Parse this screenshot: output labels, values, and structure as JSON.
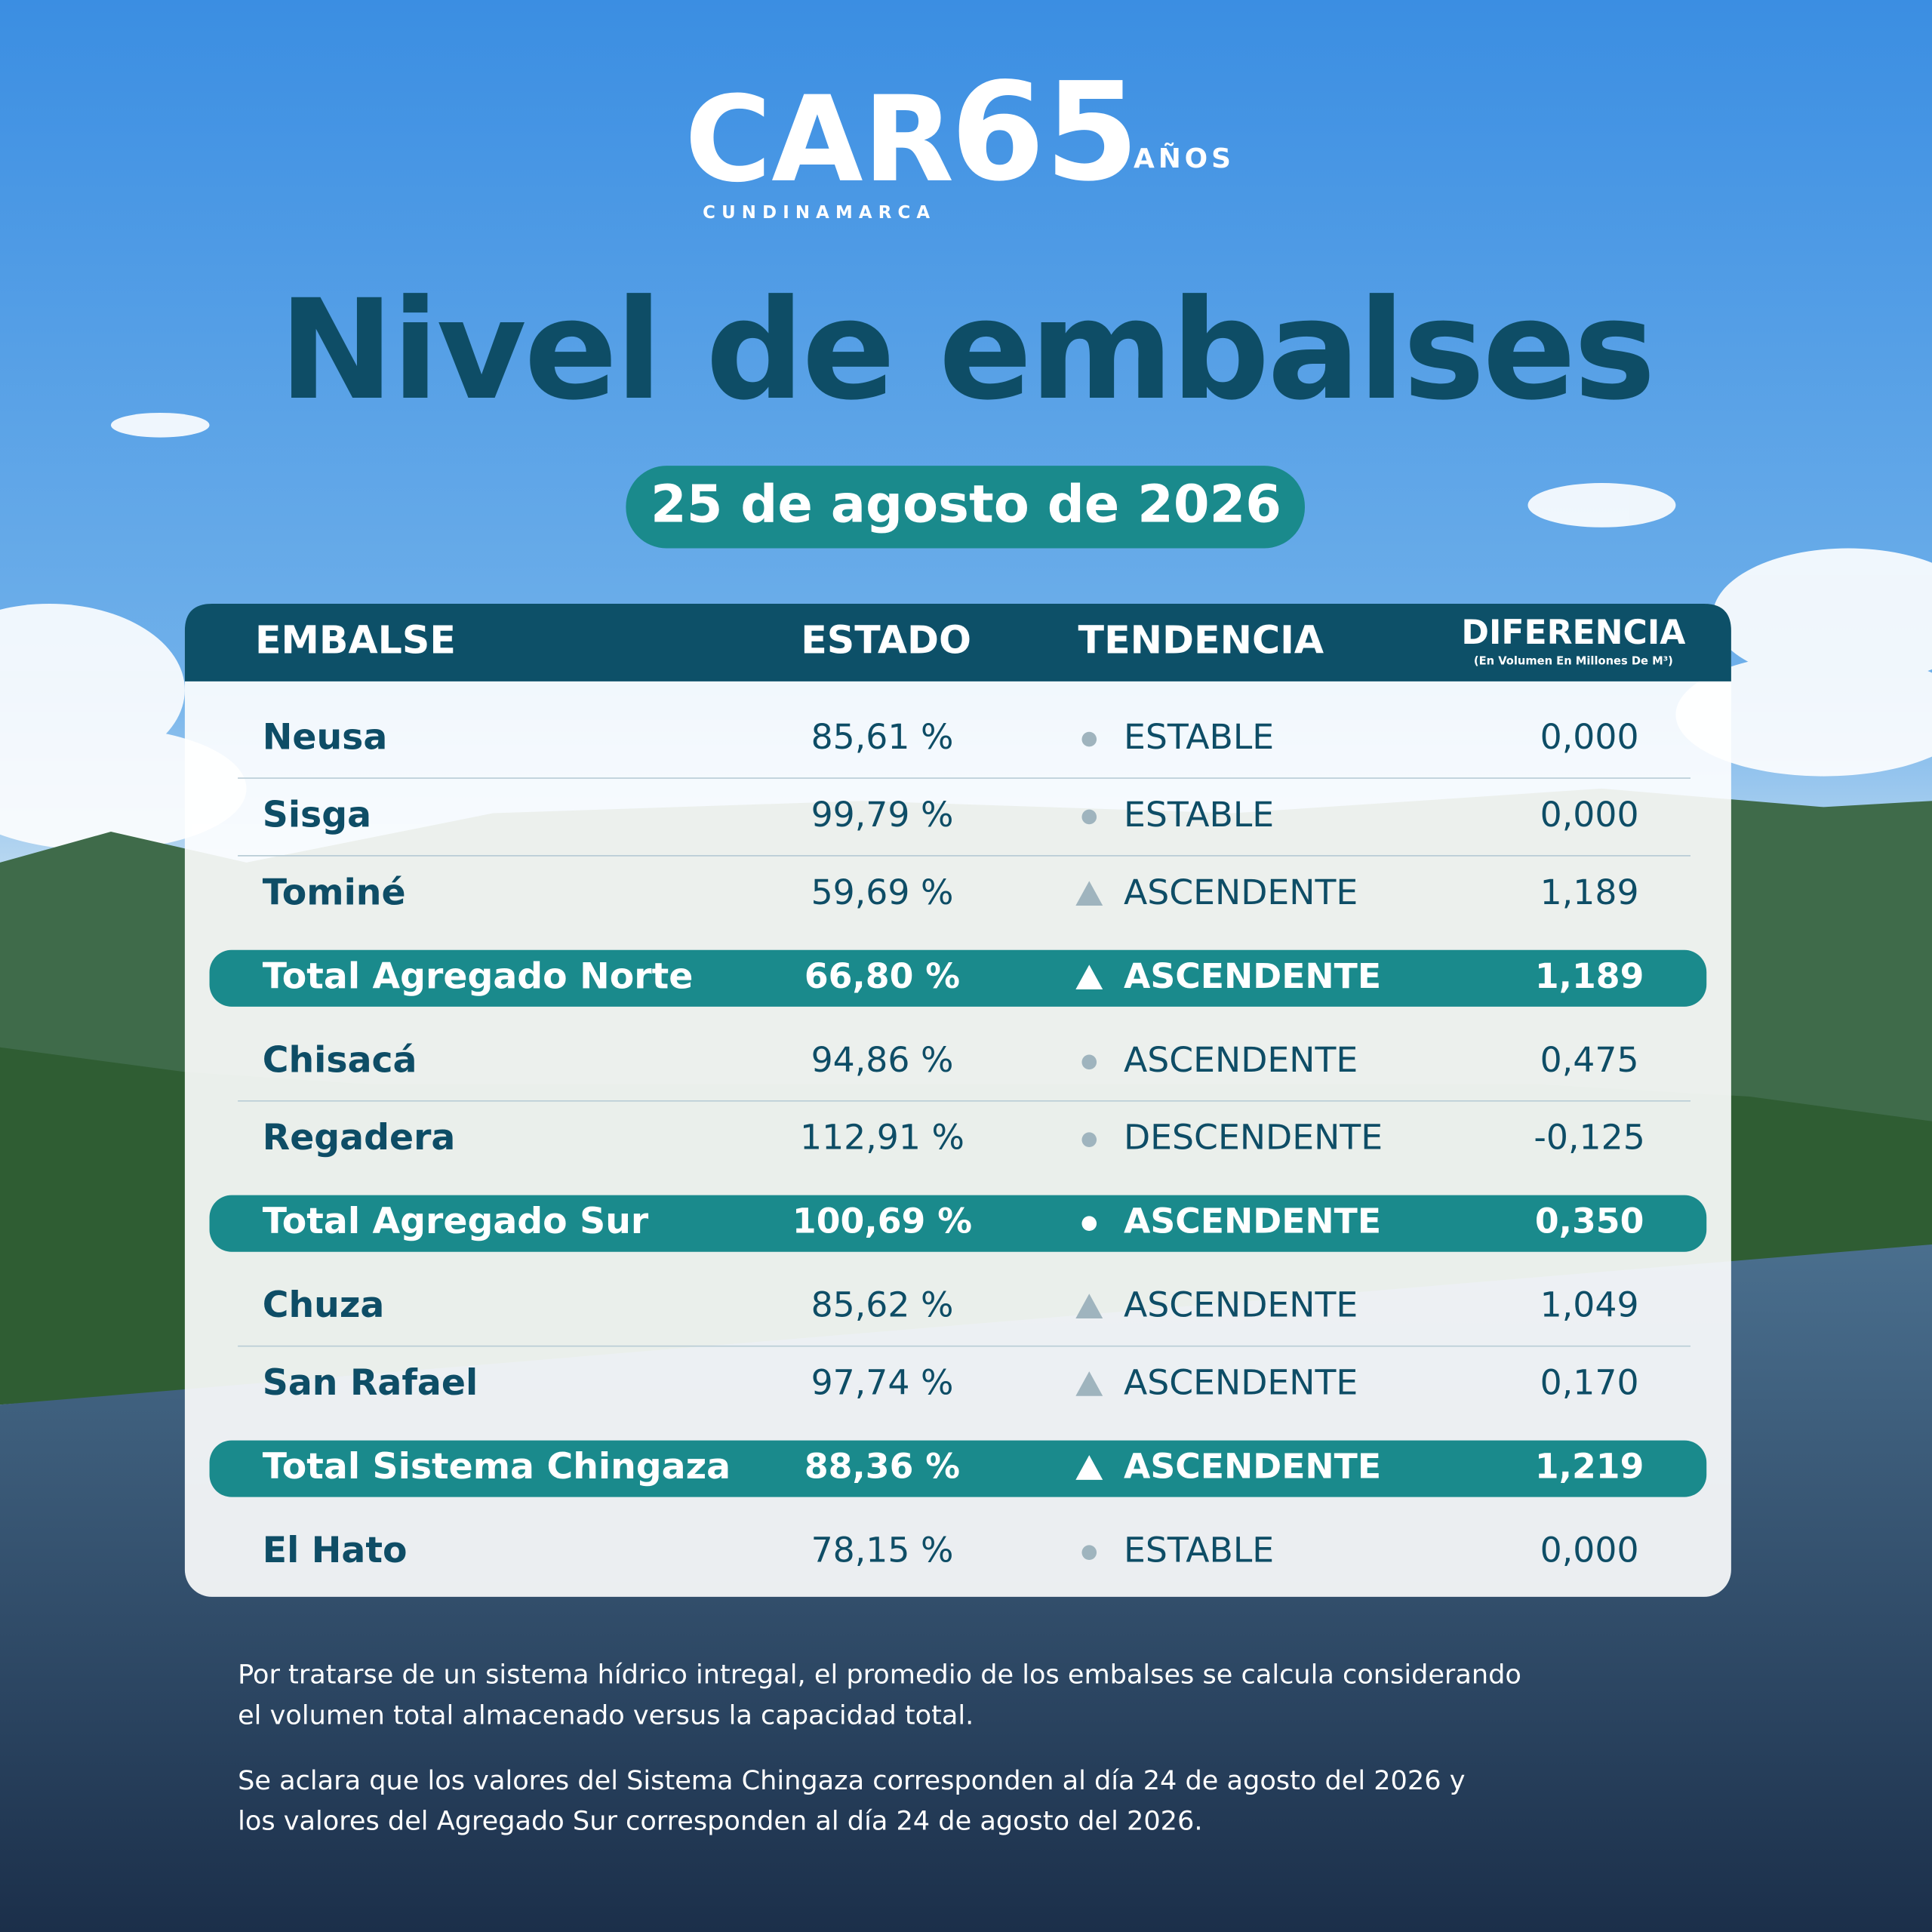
{
  "logo": {
    "brand": "CAR",
    "region": "CUNDINAMARCA",
    "anniversary": "65",
    "anniversary_label": "AÑOS"
  },
  "title": "Nivel de embalses",
  "date": "25 de agosto de 2026",
  "table": {
    "columns": [
      "EMBALSE",
      "ESTADO",
      "TENDENCIA",
      "DIFERENCIA"
    ],
    "column_note": "(En Volumen En Millones De M³)",
    "rows": [
      {
        "embalse": "Neusa",
        "estado": "85,61 %",
        "tendencia": "ESTABLE",
        "diferencia": "0,000",
        "icon": "dot",
        "total": false
      },
      {
        "embalse": "Sisga",
        "estado": "99,79 %",
        "tendencia": "ESTABLE",
        "diferencia": "0,000",
        "icon": "dot",
        "total": false
      },
      {
        "embalse": "Tominé",
        "estado": "59,69 %",
        "tendencia": "ASCENDENTE",
        "diferencia": "1,189",
        "icon": "triangle",
        "total": false
      },
      {
        "embalse": "Total Agregado Norte",
        "estado": "66,80 %",
        "tendencia": "ASCENDENTE",
        "diferencia": "1,189",
        "icon": "triangle",
        "total": true
      },
      {
        "embalse": "Chisacá",
        "estado": "94,86 %",
        "tendencia": "ASCENDENTE",
        "diferencia": "0,475",
        "icon": "dot",
        "total": false
      },
      {
        "embalse": "Regadera",
        "estado": "112,91 %",
        "tendencia": "DESCENDENTE",
        "diferencia": "-0,125",
        "icon": "dot",
        "total": false
      },
      {
        "embalse": "Total Agregado Sur",
        "estado": "100,69 %",
        "tendencia": "ASCENDENTE",
        "diferencia": "0,350",
        "icon": "dot",
        "total": true
      },
      {
        "embalse": "Chuza",
        "estado": "85,62 %",
        "tendencia": "ASCENDENTE",
        "diferencia": "1,049",
        "icon": "triangle",
        "total": false
      },
      {
        "embalse": "San Rafael",
        "estado": "97,74 %",
        "tendencia": "ASCENDENTE",
        "diferencia": "0,170",
        "icon": "triangle",
        "total": false
      },
      {
        "embalse": "Total Sistema Chingaza",
        "estado": "88,36 %",
        "tendencia": "ASCENDENTE",
        "diferencia": "1,219",
        "icon": "triangle",
        "total": true
      },
      {
        "embalse": "El Hato",
        "estado": "78,15 %",
        "tendencia": "ESTABLE",
        "diferencia": "0,000",
        "icon": "dot",
        "total": false
      }
    ]
  },
  "notes": [
    [
      "Por tratarse de un sistema hídrico intregal, el promedio de los embalses se calcula considerando",
      "el volumen total almacenado versus la capacidad total."
    ],
    [
      "Se aclara que los valores del Sistema Chingaza corresponden al día 24 de agosto del 2026 y",
      "los valores del Agregado Sur corresponden al día 24 de agosto del 2026."
    ]
  ]
}
